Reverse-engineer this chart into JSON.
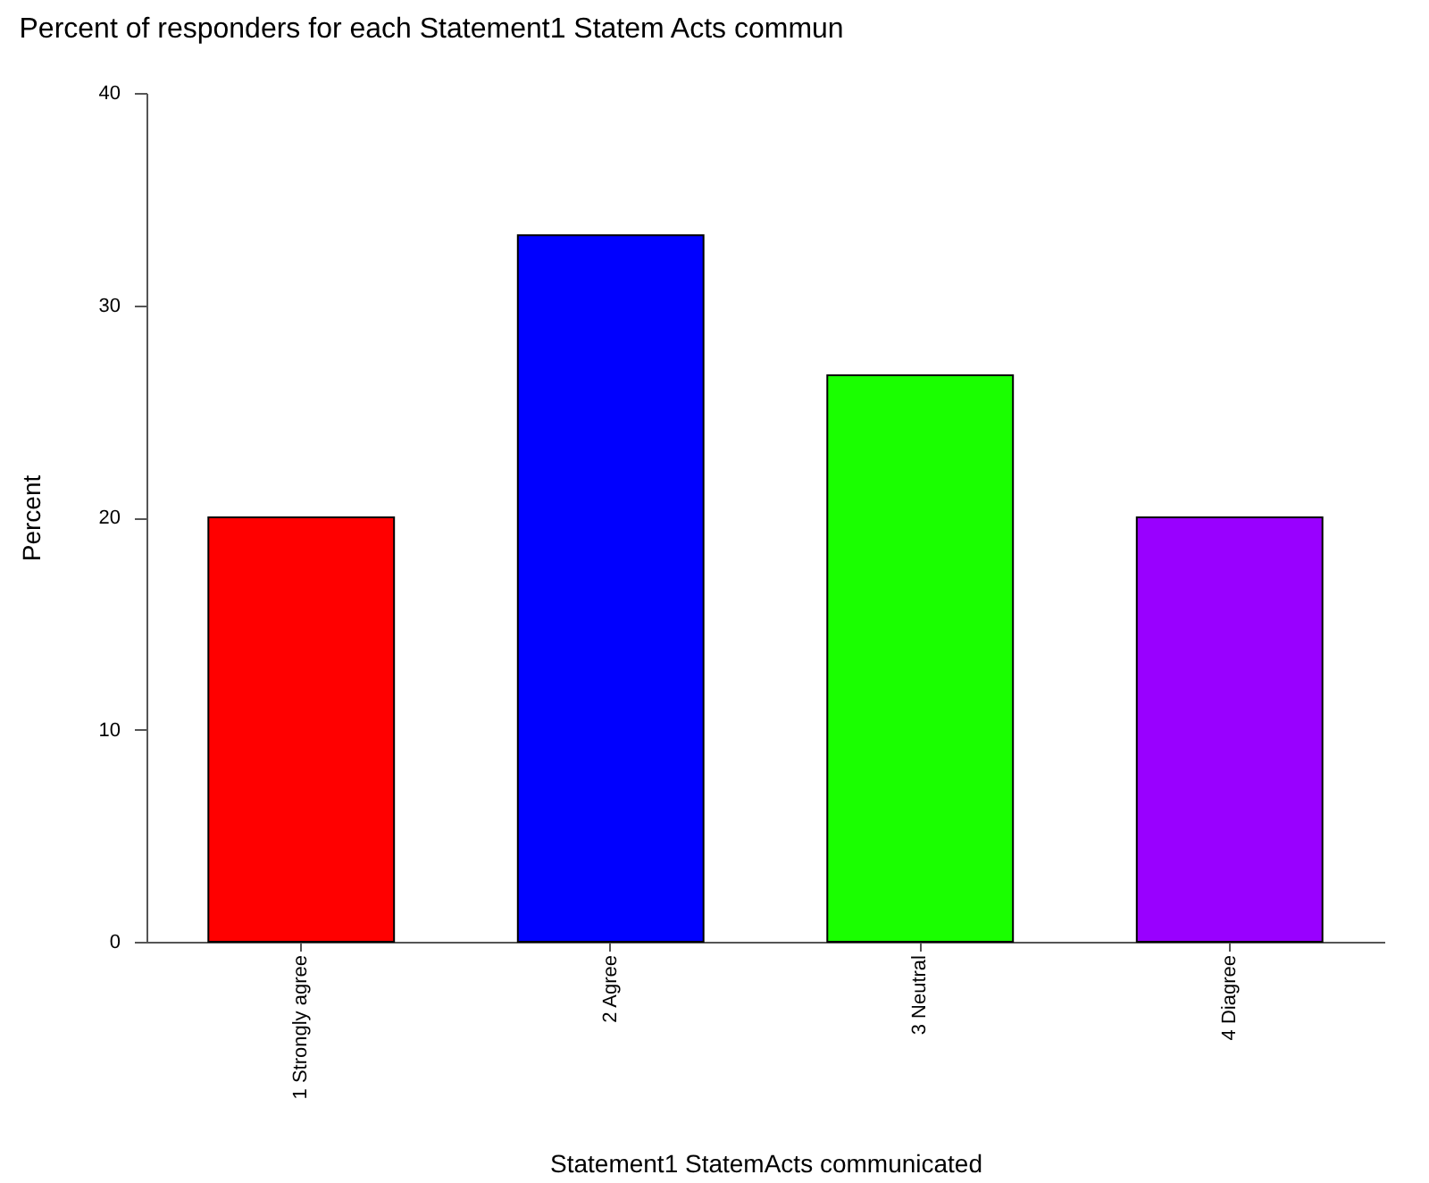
{
  "chart_data": {
    "type": "bar",
    "title": "Percent of responders for each Statement1 Statem Acts commun",
    "xlabel": "Statement1 StatemActs communicated",
    "ylabel": "Percent",
    "categories": [
      "1 Strongly agree",
      "2 Agree",
      "3 Neutral",
      "4 Diagree"
    ],
    "values": [
      20,
      33.3,
      26.7,
      20
    ],
    "colors": [
      "#ff0000",
      "#0000ff",
      "#1aff00",
      "#9900ff"
    ],
    "ylim": [
      0,
      40
    ],
    "yticks": [
      0,
      10,
      20,
      30,
      40
    ],
    "grid": false,
    "legend": false
  }
}
